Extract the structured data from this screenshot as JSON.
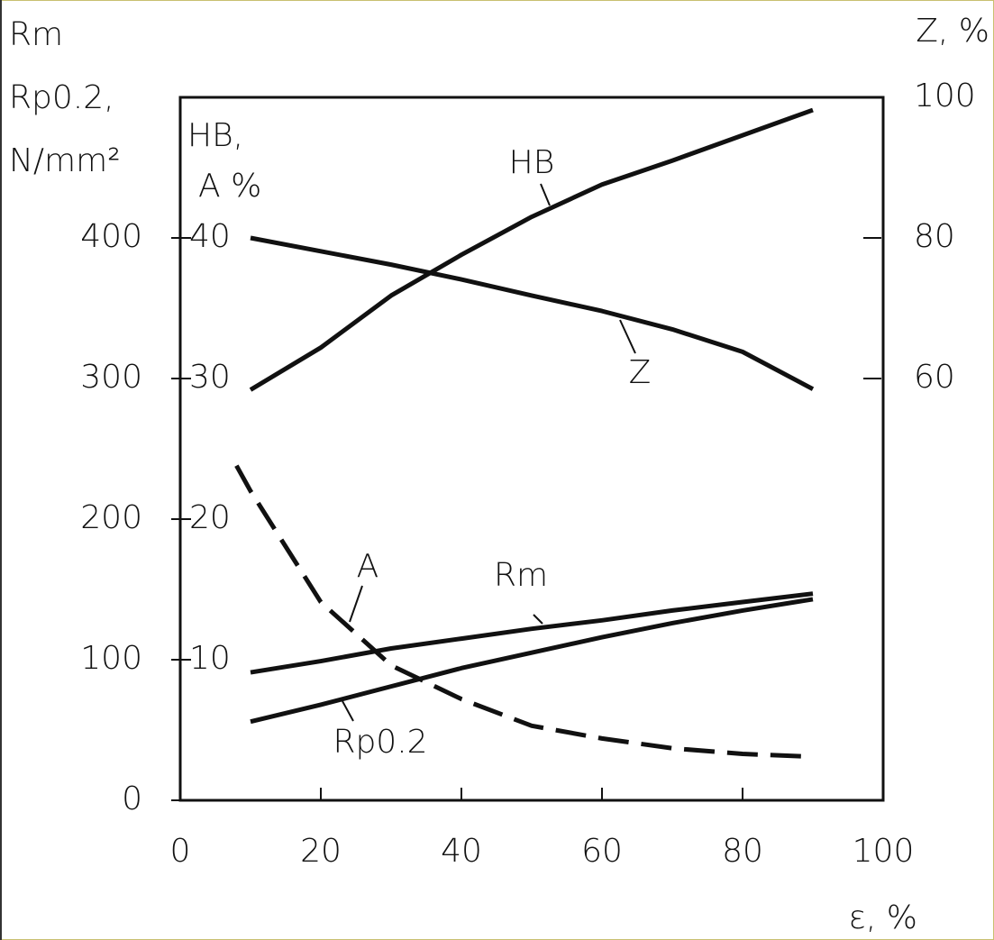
{
  "chart_data": {
    "type": "line",
    "x_label": "ε, %",
    "y_label": [
      "Rm",
      "Rp0.2,",
      "N/mm²"
    ],
    "y2_label": "Z, %",
    "y3_label": [
      "HB,",
      "A %"
    ],
    "xlim": [
      0,
      100
    ],
    "xticks": [
      0,
      20,
      40,
      60,
      80,
      100
    ],
    "ylim": [
      0,
      500
    ],
    "yticks": [
      0,
      100,
      200,
      300,
      400
    ],
    "y2lim": [
      0,
      100
    ],
    "y2ticks": [
      60,
      80,
      100
    ],
    "y3lim": [
      0,
      50
    ],
    "y3ticks": [
      10,
      20,
      30,
      40
    ],
    "x": [
      10,
      20,
      30,
      40,
      50,
      60,
      70,
      80,
      90
    ],
    "series": [
      {
        "name": "HB",
        "color": "#111111",
        "axis": "y3",
        "values": [
          29.2,
          32.2,
          35.9,
          38.8,
          41.5,
          43.8,
          45.5,
          47.3,
          49.1
        ]
      },
      {
        "name": "Z",
        "color": "#111111",
        "axis": "y2",
        "values": [
          80,
          78.1,
          76.2,
          74.1,
          71.8,
          69.6,
          67,
          63.8,
          58.5
        ]
      },
      {
        "name": "A",
        "color": "#111111",
        "axis": "y3",
        "dashed": true,
        "x": [
          8,
          10,
          20,
          30,
          40,
          50,
          60,
          70,
          80,
          90
        ],
        "values": [
          23.8,
          22,
          14.1,
          9.6,
          7.2,
          5.3,
          4.4,
          3.7,
          3.3,
          3.1
        ]
      },
      {
        "name": "Rm",
        "color": "#111111",
        "values": [
          91,
          99,
          108,
          115,
          122,
          128,
          135,
          141,
          147
        ]
      },
      {
        "name": "Rp0.2",
        "color": "#111111",
        "values": [
          56,
          68,
          81,
          94,
          105,
          116,
          126,
          135,
          143
        ]
      }
    ]
  }
}
